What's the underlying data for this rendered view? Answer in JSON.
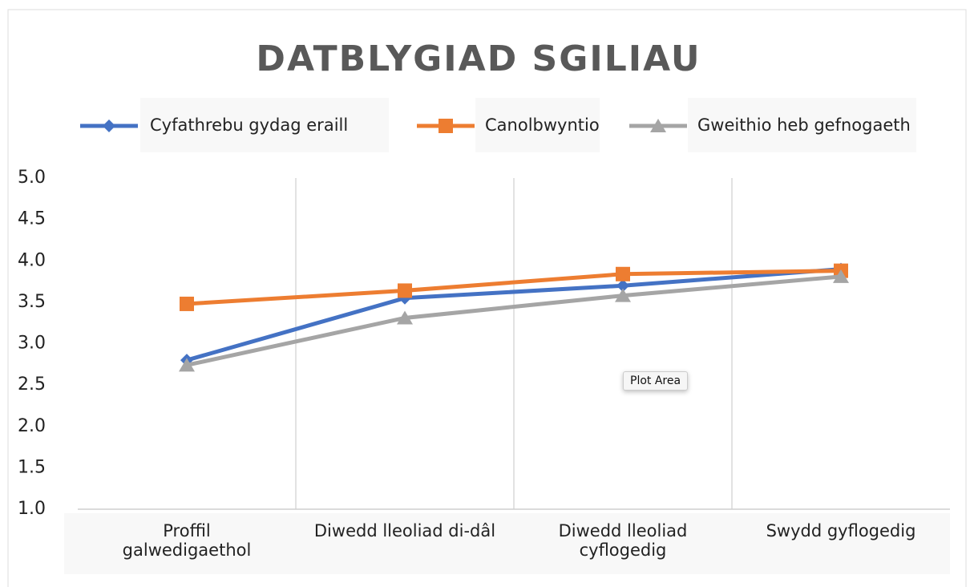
{
  "chart_data": {
    "type": "line",
    "title": "DATBLYGIAD SGILIAU",
    "categories": [
      "Proffil galwedigaethol",
      "Diwedd lleoliad di-dâl",
      "Diwedd lleoliad cyflogedig",
      "Swydd gyflogedig"
    ],
    "series": [
      {
        "name": "Cyfathrebu gydag eraill",
        "color": "#4472c4",
        "marker": "diamond",
        "values": [
          2.8,
          3.55,
          3.7,
          3.9
        ]
      },
      {
        "name": "Canolbwyntio",
        "color": "#ed7d31",
        "marker": "square",
        "values": [
          3.48,
          3.64,
          3.84,
          3.88
        ]
      },
      {
        "name": "Gweithio heb gefnogaeth",
        "color": "#a5a5a5",
        "marker": "triangle",
        "values": [
          2.74,
          3.31,
          3.58,
          3.81
        ]
      }
    ],
    "ylim": [
      1,
      5
    ],
    "yticks": [
      {
        "value": 1,
        "label": "1.0"
      },
      {
        "value": 1.5,
        "label": "1.5"
      },
      {
        "value": 2,
        "label": "2.0"
      },
      {
        "value": 2.5,
        "label": "2.5"
      },
      {
        "value": 3,
        "label": "3.0"
      },
      {
        "value": 3.5,
        "label": "3.5"
      },
      {
        "value": 4,
        "label": "4.0"
      },
      {
        "value": 4.5,
        "label": "4.5"
      },
      {
        "value": 5,
        "label": "5.0"
      }
    ],
    "grid": "vertical",
    "legend": "top",
    "tooltip": "Plot Area"
  }
}
